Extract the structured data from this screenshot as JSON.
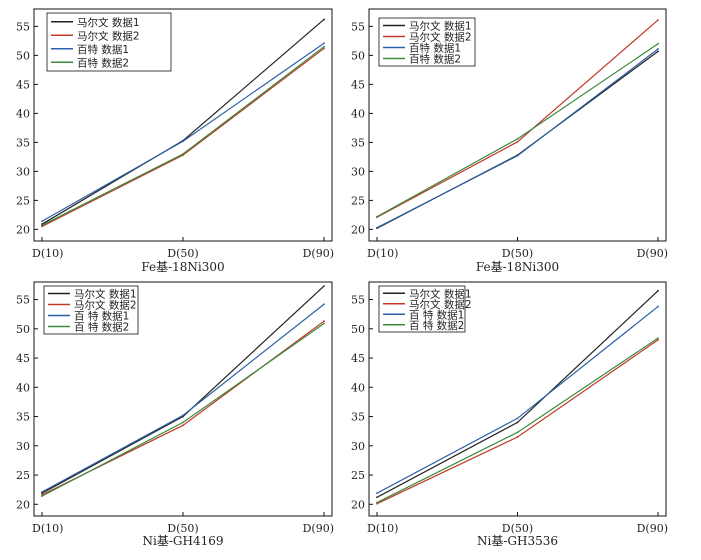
{
  "figure_title": "",
  "chart_data": [
    {
      "type": "line",
      "title": "Fe基-18Ni300",
      "xlabel": "",
      "ylabel": "",
      "categories": [
        "D(10)",
        "D(50)",
        "D(90)"
      ],
      "ylim": [
        18,
        58
      ],
      "yticks": [
        20,
        25,
        30,
        35,
        40,
        45,
        50,
        55
      ],
      "legend_position": "top-left",
      "series": [
        {
          "name": "马尔文 数据1",
          "color": "#222222",
          "values": [
            20.9,
            35.3,
            56.2
          ]
        },
        {
          "name": "马尔文 数据2",
          "color": "#c0392b",
          "values": [
            20.5,
            32.8,
            51.2
          ]
        },
        {
          "name": "百特 数据1",
          "color": "#2e5fa8",
          "values": [
            21.4,
            35.2,
            52.1
          ]
        },
        {
          "name": "百特 数据2",
          "color": "#3c8a3c",
          "values": [
            20.7,
            33.0,
            51.5
          ]
        }
      ]
    },
    {
      "type": "line",
      "title": "Fe基-18Ni300",
      "xlabel": "",
      "ylabel": "",
      "categories": [
        "D(10)",
        "D(50)",
        "D(90)"
      ],
      "ylim": [
        18,
        58
      ],
      "yticks": [
        20,
        25,
        30,
        35,
        40,
        45,
        50,
        55
      ],
      "legend_position": "top-left",
      "series": [
        {
          "name": "马尔文 数据1",
          "color": "#222222",
          "values": [
            20.2,
            32.8,
            50.7
          ]
        },
        {
          "name": "马尔文 数据2",
          "color": "#c0392b",
          "values": [
            22.1,
            35.1,
            56.1
          ]
        },
        {
          "name": "百特 数据1",
          "color": "#2e5fa8",
          "values": [
            20.3,
            32.7,
            51.1
          ]
        },
        {
          "name": "百特 数据2",
          "color": "#3c8a3c",
          "values": [
            22.2,
            35.6,
            52.0
          ]
        }
      ]
    },
    {
      "type": "line",
      "title": "Ni基-GH4169",
      "xlabel": "",
      "ylabel": "",
      "categories": [
        "D(10)",
        "D(50)",
        "D(90)"
      ],
      "ylim": [
        18,
        58
      ],
      "yticks": [
        20,
        25,
        30,
        35,
        40,
        45,
        50,
        55
      ],
      "legend_position": "top-left",
      "series": [
        {
          "name": "马尔文 数据1",
          "color": "#222222",
          "values": [
            21.9,
            35.0,
            57.3
          ]
        },
        {
          "name": "马尔文 数据2",
          "color": "#c0392b",
          "values": [
            21.6,
            33.5,
            51.3
          ]
        },
        {
          "name": "百 特 数据1",
          "color": "#2e5fa8",
          "values": [
            22.1,
            35.2,
            54.2
          ]
        },
        {
          "name": "百 特 数据2",
          "color": "#3c8a3c",
          "values": [
            21.4,
            34.0,
            50.9
          ]
        }
      ]
    },
    {
      "type": "line",
      "title": "Ni基-GH3536",
      "xlabel": "",
      "ylabel": "",
      "categories": [
        "D(10)",
        "D(50)",
        "D(90)"
      ],
      "ylim": [
        18,
        58
      ],
      "yticks": [
        20,
        25,
        30,
        35,
        40,
        45,
        50,
        55
      ],
      "legend_position": "top-left",
      "series": [
        {
          "name": "马尔文 数据1",
          "color": "#222222",
          "values": [
            21.2,
            34.0,
            56.5
          ]
        },
        {
          "name": "马尔文 数据2",
          "color": "#c0392b",
          "values": [
            20.1,
            31.5,
            48.1
          ]
        },
        {
          "name": "百 特 数据1",
          "color": "#2e5fa8",
          "values": [
            21.9,
            34.7,
            53.8
          ]
        },
        {
          "name": "百 特 数据2",
          "color": "#3c8a3c",
          "values": [
            20.3,
            32.3,
            48.4
          ]
        }
      ]
    }
  ]
}
